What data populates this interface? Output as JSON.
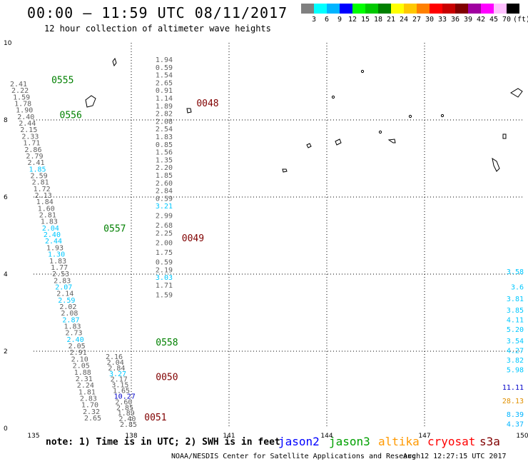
{
  "header": {
    "title": "00:00 – 11:59 UTC 08/11/2017",
    "subtitle": "12 hour collection of altimeter wave heights"
  },
  "legend": {
    "colors": [
      "#808080",
      "#00ffff",
      "#00b4ff",
      "#0000ff",
      "#00ff00",
      "#00c800",
      "#008000",
      "#ffff00",
      "#ffc800",
      "#ff8000",
      "#ff0000",
      "#c80000",
      "#800000",
      "#a000a0",
      "#ff00ff",
      "#ffc0ff",
      "#000000"
    ],
    "labels": [
      "3",
      "6",
      "9",
      "12",
      "15",
      "18",
      "21",
      "24",
      "27",
      "30",
      "33",
      "36",
      "39",
      "42",
      "45",
      "70",
      "(ft)"
    ]
  },
  "map": {
    "lon_ticks": [
      "135",
      "138",
      "141",
      "144",
      "147",
      "150"
    ],
    "lat_ticks": [
      "0",
      "2",
      "4",
      "6",
      "8",
      "10"
    ],
    "lon_range": [
      135,
      150
    ],
    "lat_range": [
      0,
      10
    ],
    "grid": true
  },
  "passes": [
    {
      "id": "0555",
      "color": "#008000",
      "lon": 135.55,
      "lat": 8.95
    },
    {
      "id": "0556",
      "color": "#008000",
      "lon": 135.8,
      "lat": 8.05
    },
    {
      "id": "0557",
      "color": "#008000",
      "lon": 137.15,
      "lat": 5.1
    },
    {
      "id": "0558",
      "color": "#008000",
      "lon": 138.75,
      "lat": 2.15
    },
    {
      "id": "0048",
      "color": "#800000",
      "lon": 140.0,
      "lat": 8.35
    },
    {
      "id": "0049",
      "color": "#800000",
      "lon": 139.55,
      "lat": 4.85
    },
    {
      "id": "0050",
      "color": "#800000",
      "lon": 138.75,
      "lat": 1.25
    },
    {
      "id": "0051",
      "color": "#800000",
      "lon": 138.4,
      "lat": 0.2
    }
  ],
  "central_track": [
    {
      "v": "1.94",
      "lat": 9.5
    },
    {
      "v": "0.59",
      "lat": 9.3
    },
    {
      "v": "1.54",
      "lat": 9.1
    },
    {
      "v": "2.65",
      "lat": 8.9
    },
    {
      "v": "0.91",
      "lat": 8.7
    },
    {
      "v": "1.14",
      "lat": 8.5
    },
    {
      "v": "1.89",
      "lat": 8.3
    },
    {
      "v": "2.82",
      "lat": 8.1
    },
    {
      "v": "2.08",
      "lat": 7.9
    },
    {
      "v": "2.54",
      "lat": 7.7
    },
    {
      "v": "1.83",
      "lat": 7.5
    },
    {
      "v": "0.85",
      "lat": 7.3
    },
    {
      "v": "1.56",
      "lat": 7.1
    },
    {
      "v": "1.35",
      "lat": 6.9
    },
    {
      "v": "2.20",
      "lat": 6.7
    },
    {
      "v": "1.85",
      "lat": 6.5
    },
    {
      "v": "2.60",
      "lat": 6.3
    },
    {
      "v": "2.84",
      "lat": 6.1
    },
    {
      "v": "0.59",
      "lat": 5.9
    },
    {
      "v": "3.21",
      "lat": 5.7,
      "c": "#00c8ff"
    },
    {
      "v": "2.99",
      "lat": 5.45
    },
    {
      "v": "2.68",
      "lat": 5.2
    },
    {
      "v": "2.25",
      "lat": 5.0
    },
    {
      "v": "2.00",
      "lat": 4.75
    },
    {
      "v": "1.75",
      "lat": 4.5
    },
    {
      "v": "0.59",
      "lat": 4.25
    },
    {
      "v": "2.19",
      "lat": 4.05
    },
    {
      "v": "3.03",
      "lat": 3.85,
      "c": "#00c8ff"
    },
    {
      "v": "1.71",
      "lat": 3.65
    },
    {
      "v": "1.59",
      "lat": 3.4
    }
  ],
  "east_track": [
    {
      "v": "3.58",
      "lat": 4.0,
      "c": "#00c8ff"
    },
    {
      "v": "3.6",
      "lat": 3.6,
      "c": "#00c8ff"
    },
    {
      "v": "3.81",
      "lat": 3.3,
      "c": "#00c8ff"
    },
    {
      "v": "3.85",
      "lat": 3.0,
      "c": "#00c8ff"
    },
    {
      "v": "4.11",
      "lat": 2.75,
      "c": "#00c8ff"
    },
    {
      "v": "5.20",
      "lat": 2.5,
      "c": "#00c8ff"
    },
    {
      "v": "3.54",
      "lat": 2.2,
      "c": "#00c8ff"
    },
    {
      "v": "4.27",
      "lat": 1.95,
      "c": "#00c8ff"
    },
    {
      "v": "3.82",
      "lat": 1.7,
      "c": "#00c8ff"
    },
    {
      "v": "5.98",
      "lat": 1.45,
      "c": "#00c8ff"
    },
    {
      "v": "11.11",
      "lat": 1.0,
      "c": "#0000c8"
    },
    {
      "v": "28.13",
      "lat": 0.65,
      "c": "#e09000"
    },
    {
      "v": "8.39",
      "lat": 0.3,
      "c": "#00b4ff"
    },
    {
      "v": "4.37",
      "lat": 0.05,
      "c": "#00b4ff"
    }
  ],
  "diag_left": [
    "2.41",
    "2.22",
    "1.59",
    "1.78",
    "1.90",
    "2.40",
    "2.44",
    "2.15",
    "2.33",
    "1.71",
    "2.86",
    "2.79",
    "2.41",
    "1.85",
    "2.59",
    "2.81",
    "1.72",
    "2.13",
    "1.84",
    "1.60",
    "2.81",
    "1.83",
    "2.04",
    "2.40",
    "2.44",
    "1.93",
    "1.30",
    "1.83",
    "1.77",
    "2.53",
    "2.83",
    "2.07",
    "2.14",
    "2.59",
    "2.02",
    "2.08",
    "2.87",
    "1.83",
    "2.73",
    "2.40",
    "2.05",
    "2.91",
    "2.10",
    "2.05",
    "1.88",
    "2.31",
    "2.24",
    "1.81",
    "2.83",
    "1.70",
    "2.32",
    "2.65"
  ],
  "diag_right": [
    "2.16",
    "2.04",
    "2.84",
    "3.27",
    "2.17",
    "3.15",
    "1.65",
    "10.27",
    "2.60",
    "2.85",
    "1.89",
    "2.40",
    "2.85"
  ],
  "note": "note: 1) Time is in UTC; 2) SWH is in feet",
  "satellites": [
    {
      "name": "jason2",
      "color": "#0000ff"
    },
    {
      "name": "jason3",
      "color": "#00a000"
    },
    {
      "name": "altika",
      "color": "#ff9900"
    },
    {
      "name": "cryosat",
      "color": "#ff0000"
    },
    {
      "name": "s3a",
      "color": "#800000"
    }
  ],
  "footer": {
    "credit": "NOAA/NESDIS Center for Satellite Applications and Research",
    "timestamp": "Aug 12 12:27:15 UTC 2017"
  }
}
